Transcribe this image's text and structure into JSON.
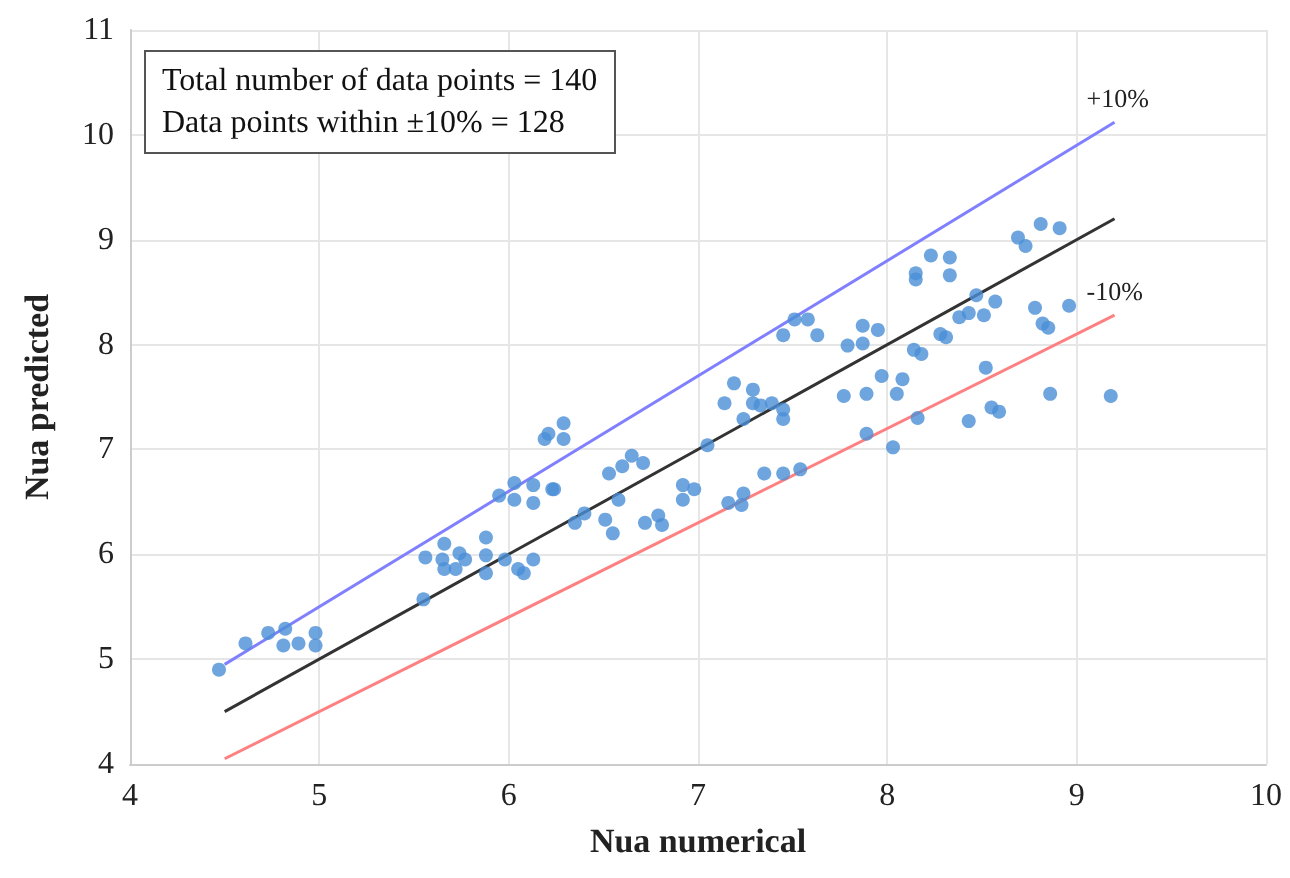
{
  "chart_data": {
    "type": "scatter",
    "xlabel": "Nua numerical",
    "ylabel": "Nua predicted",
    "annotations": [
      "Total number of data points = 140",
      "Data points within ±10% = 128"
    ],
    "xlim": [
      4,
      10
    ],
    "xticks": [
      4,
      5,
      6,
      7,
      8,
      9,
      10
    ],
    "ylim": [
      4,
      11
    ],
    "yticks": [
      4,
      5,
      6,
      7,
      8,
      9,
      10,
      11
    ],
    "grid": true,
    "legend": false,
    "marker": "circle",
    "series": [
      {
        "color": "#4a8fd6",
        "x": [
          4.47,
          4.61,
          4.73,
          4.82,
          4.81,
          4.89,
          4.98,
          4.98,
          5.55,
          5.56,
          5.66,
          5.65,
          5.66,
          5.74,
          5.77,
          5.72,
          5.88,
          5.88,
          5.88,
          5.98,
          6.05,
          6.13,
          6.08,
          5.95,
          6.03,
          6.03,
          6.13,
          6.13,
          6.23,
          6.19,
          6.21,
          6.24,
          6.29,
          6.29,
          6.35,
          6.4,
          6.51,
          6.55,
          6.53,
          6.6,
          6.65,
          6.71,
          6.58,
          6.72,
          6.79,
          6.81,
          6.92,
          6.92,
          6.98,
          7.05,
          7.16,
          7.24,
          7.23,
          7.35,
          7.45,
          7.54,
          7.14,
          7.19,
          7.24,
          7.29,
          7.29,
          7.33,
          7.39,
          7.45,
          7.45,
          7.45,
          7.51,
          7.58,
          7.63,
          7.77,
          7.79,
          7.87,
          7.87,
          7.95,
          7.89,
          7.97,
          7.89,
          8.03,
          8.05,
          8.08,
          8.16,
          8.14,
          8.18,
          8.15,
          8.15,
          8.23,
          8.33,
          8.33,
          8.28,
          8.31,
          8.38,
          8.43,
          8.47,
          8.51,
          8.57,
          8.52,
          8.43,
          8.55,
          8.59,
          8.69,
          8.73,
          8.81,
          8.91,
          8.78,
          8.82,
          8.85,
          8.96,
          8.86,
          9.18
        ],
        "values": [
          4.9,
          5.15,
          5.25,
          5.29,
          5.13,
          5.15,
          5.25,
          5.13,
          5.57,
          5.97,
          6.1,
          5.95,
          5.86,
          6.01,
          5.95,
          5.86,
          6.16,
          5.99,
          5.82,
          5.95,
          5.86,
          5.95,
          5.82,
          6.56,
          6.68,
          6.52,
          6.66,
          6.49,
          6.62,
          7.1,
          7.15,
          6.62,
          7.25,
          7.1,
          6.3,
          6.39,
          6.33,
          6.2,
          6.77,
          6.84,
          6.94,
          6.87,
          6.52,
          6.3,
          6.37,
          6.28,
          6.66,
          6.52,
          6.62,
          7.04,
          6.49,
          6.58,
          6.47,
          6.77,
          6.77,
          6.81,
          7.44,
          7.63,
          7.29,
          7.57,
          7.44,
          7.42,
          7.44,
          7.38,
          7.29,
          8.09,
          8.24,
          8.24,
          8.09,
          7.51,
          7.99,
          8.18,
          8.01,
          8.14,
          7.53,
          7.7,
          7.15,
          7.02,
          7.53,
          7.67,
          7.3,
          7.95,
          7.91,
          8.68,
          8.62,
          8.85,
          8.83,
          8.66,
          8.1,
          8.07,
          8.26,
          8.3,
          8.47,
          8.28,
          8.41,
          7.78,
          7.27,
          7.4,
          7.36,
          9.02,
          8.94,
          9.15,
          9.11,
          8.35,
          8.2,
          8.16,
          8.37,
          7.53,
          7.51
        ]
      },
      {
        "type": "line",
        "name": "+10%",
        "color": "#8080ff",
        "marker": "none",
        "x": [
          4.5,
          9.2
        ],
        "values": [
          4.95,
          10.12
        ]
      },
      {
        "type": "line",
        "color": "#333333",
        "marker": "none",
        "x": [
          4.5,
          9.2
        ],
        "values": [
          4.5,
          9.2
        ]
      },
      {
        "type": "line",
        "name": "-10%",
        "color": "#ff8080",
        "marker": "none",
        "x": [
          4.5,
          9.2
        ],
        "values": [
          4.05,
          8.28
        ]
      }
    ]
  }
}
